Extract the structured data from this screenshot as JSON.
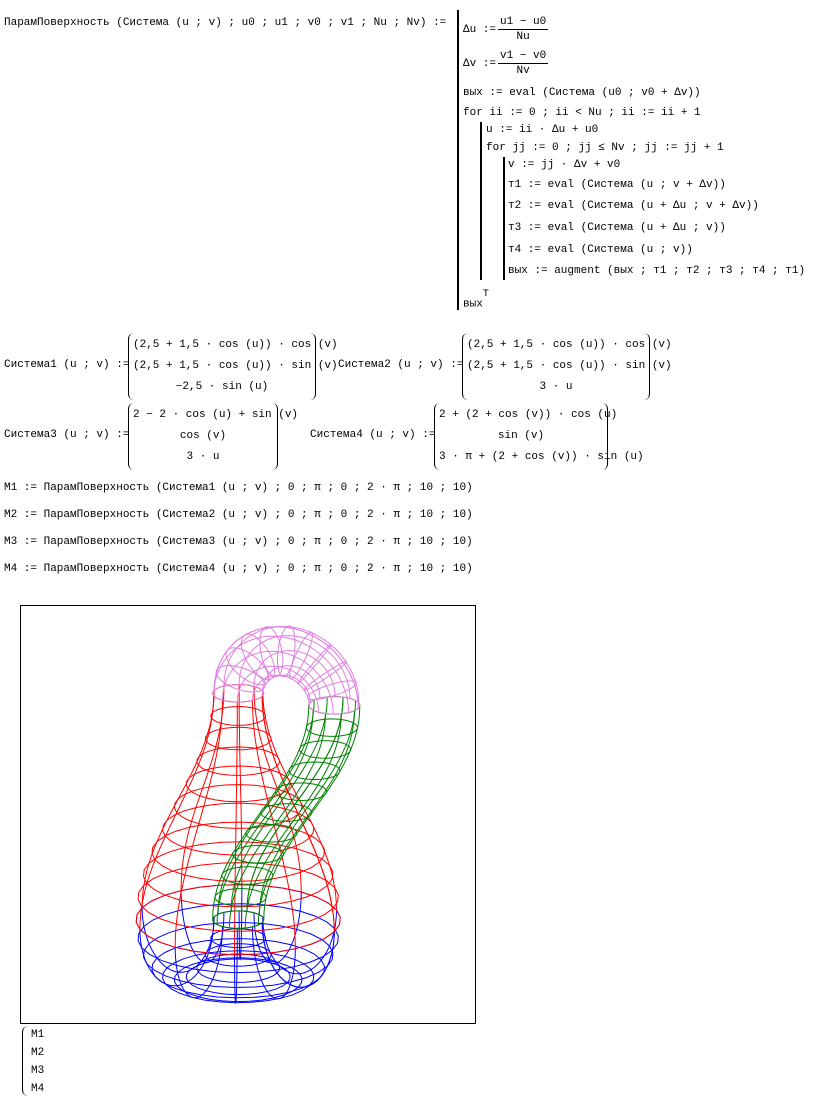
{
  "program": {
    "header": "ПарамПоверхность (Система (u ; v) ; u0 ; u1 ; v0 ; v1 ; Nu ; Nv) :=",
    "du_lhs": "Δu :=",
    "du_num": "u1 − u0",
    "du_den": "Nu",
    "dv_lhs": "Δv :=",
    "dv_num": "v1 − v0",
    "dv_den": "Nv",
    "line_out": "вых := eval (Система (u0 ; v0 + Δv))",
    "line_for1": "for ii := 0 ; ii < Nu ; ii := ii + 1",
    "line_u": "u := ii · Δu + u0",
    "line_for2": "for jj := 0 ; jj ≤ Nv ; jj := jj + 1",
    "line_v": "v := jj · Δv + v0",
    "line_t1": "т1 := eval (Система (u ; v + Δv))",
    "line_t2": "т2 := eval (Система (u + Δu ; v + Δv))",
    "line_t3": "т3 := eval (Система (u + Δu ; v))",
    "line_t4": "т4 := eval (Система (u ; v))",
    "line_aug": "вых := augment (вых ; т1 ; т2 ; т3 ; т4 ; т1)",
    "result": "вых",
    "result_sup": "T"
  },
  "systems": [
    {
      "label": "Система1 (u ; v) :=",
      "rows": [
        "(2,5 + 1,5 · cos (u)) · cos (v)",
        "(2,5 + 1,5 · cos (u)) · sin (v)",
        "−2,5 · sin (u)"
      ]
    },
    {
      "label": "Система2 (u ; v) :=",
      "rows": [
        "(2,5 + 1,5 · cos (u)) · cos (v)",
        "(2,5 + 1,5 · cos (u)) · sin (v)",
        "3 · u"
      ]
    },
    {
      "label": "Система3 (u ; v) :=",
      "rows": [
        "2 − 2 · cos (u) + sin (v)",
        "cos (v)",
        "3 · u"
      ]
    },
    {
      "label": "Система4 (u ; v) :=",
      "rows": [
        "2 + (2 + cos (v)) · cos (u)",
        "sin (v)",
        "3 · π + (2 + cos (v)) · sin (u)"
      ]
    }
  ],
  "assignments": [
    "M1 := ПарамПоверхность (Система1 (u ; v) ; 0 ; π ; 0 ; 2 · π ; 10 ; 10)",
    "M2 := ПарамПоверхность (Система2 (u ; v) ; 0 ; π ; 0 ; 2 · π ; 10 ; 10)",
    "M3 := ПарамПоверхность (Система3 (u ; v) ; 0 ; π ; 0 ; 2 · π ; 10 ; 10)",
    "M4 := ПарамПоверхность (Система4 (u ; v) ; 0 ; π ; 0 ; 2 · π ; 10 ; 10)"
  ],
  "plot": {
    "type": "3d-wireframe",
    "grid": {
      "Nu": 10,
      "Nv": 10
    },
    "series": [
      {
        "label": "M1",
        "color": "#0000ff"
      },
      {
        "label": "M2",
        "color": "#ff0000"
      },
      {
        "label": "M3",
        "color": "#008000"
      },
      {
        "label": "M4",
        "color": "#e080e0"
      }
    ]
  }
}
